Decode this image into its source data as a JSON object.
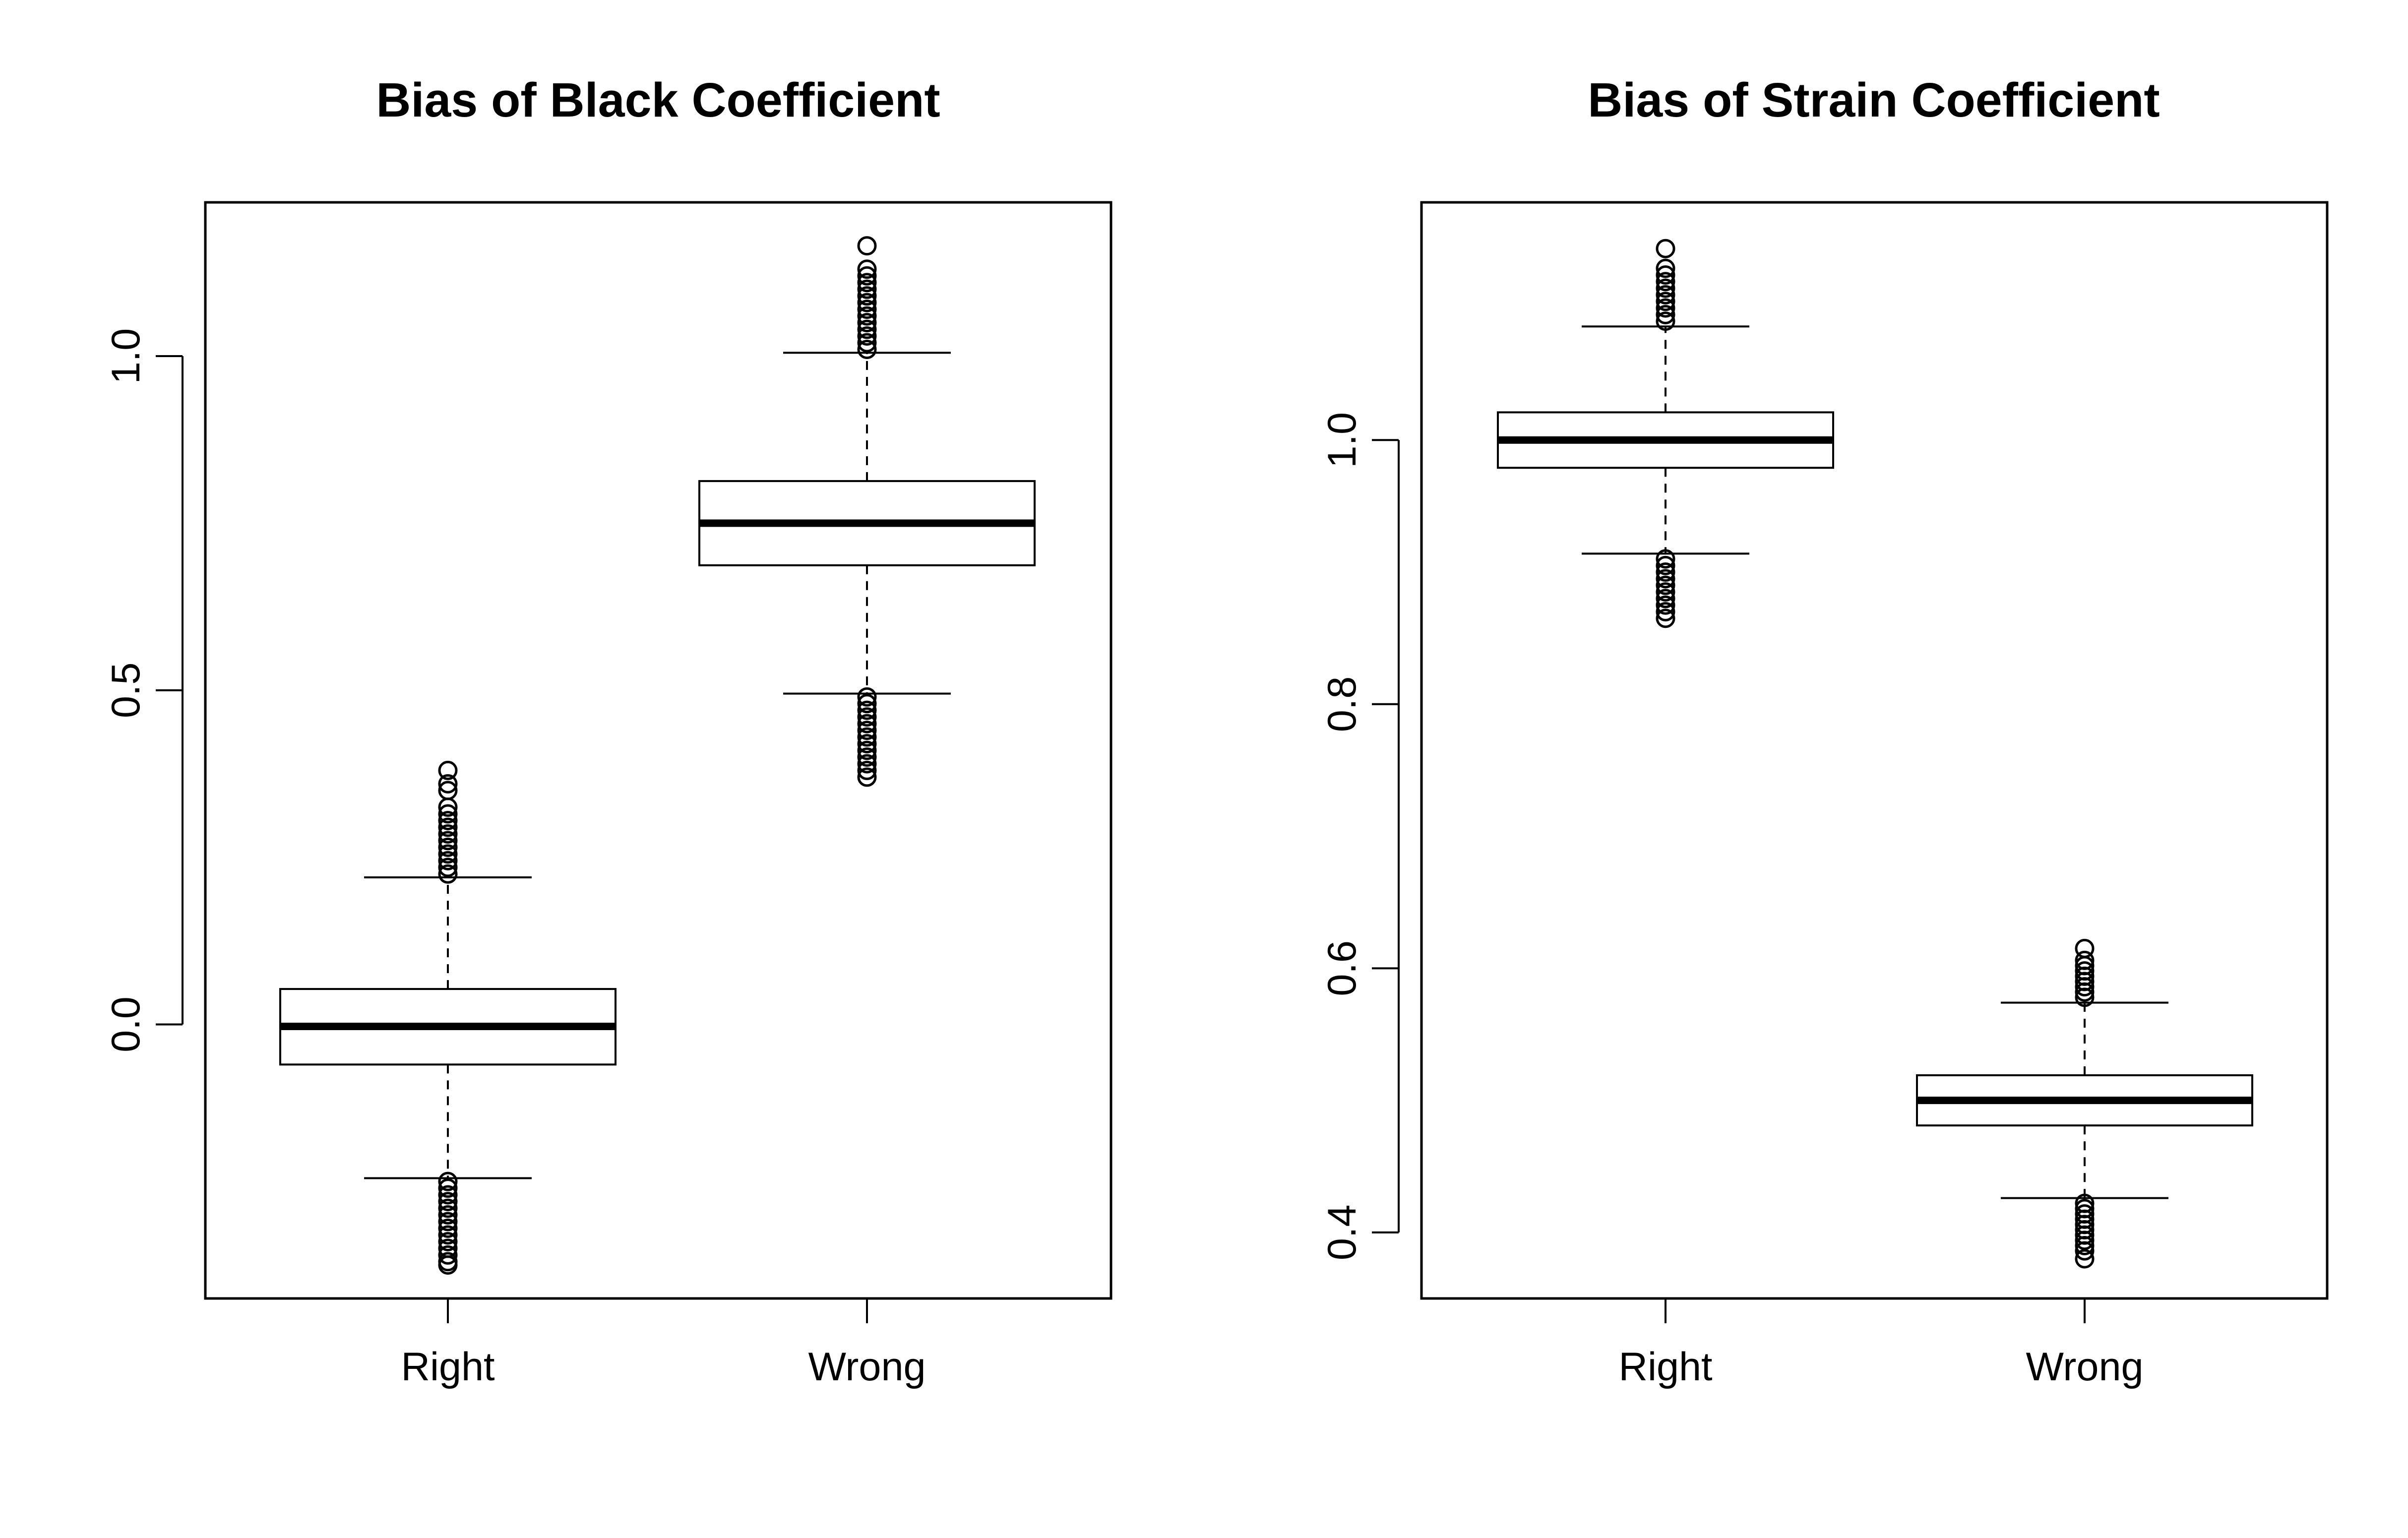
{
  "chart_data": [
    {
      "type": "box",
      "title": "Bias of Black Coefficient",
      "xlabel": "",
      "ylabel": "",
      "categories": [
        "Right",
        "Wrong"
      ],
      "yticks": [
        0.0,
        0.5,
        1.0
      ],
      "ytick_labels": [
        "0.0",
        "0.5",
        "1.0"
      ],
      "ylim": [
        -0.41,
        1.23
      ],
      "grid": false,
      "boxes": [
        {
          "label": "Right",
          "whisker_low": -0.23,
          "q1": -0.06,
          "median": -0.003,
          "q3": 0.053,
          "whisker_high": 0.22,
          "outliers_low": [
            -0.235,
            -0.245,
            -0.255,
            -0.265,
            -0.275,
            -0.285,
            -0.295,
            -0.305,
            -0.315,
            -0.325,
            -0.335,
            -0.345,
            -0.355,
            -0.36
          ],
          "outliers_high": [
            0.225,
            0.235,
            0.245,
            0.255,
            0.265,
            0.275,
            0.285,
            0.295,
            0.305,
            0.315,
            0.325,
            0.35,
            0.36,
            0.38
          ]
        },
        {
          "label": "Wrong",
          "whisker_low": 0.495,
          "q1": 0.687,
          "median": 0.75,
          "q3": 0.813,
          "whisker_high": 1.005,
          "outliers_low": [
            0.49,
            0.48,
            0.47,
            0.46,
            0.45,
            0.44,
            0.43,
            0.42,
            0.41,
            0.4,
            0.39,
            0.38,
            0.37
          ],
          "outliers_high": [
            1.01,
            1.02,
            1.03,
            1.04,
            1.05,
            1.06,
            1.07,
            1.08,
            1.09,
            1.1,
            1.11,
            1.12,
            1.13,
            1.165
          ]
        }
      ]
    },
    {
      "type": "box",
      "title": "Bias of Strain Coefficient",
      "xlabel": "",
      "ylabel": "",
      "categories": [
        "Right",
        "Wrong"
      ],
      "yticks": [
        0.4,
        0.6,
        0.8,
        1.0
      ],
      "ytick_labels": [
        "0.4",
        "0.6",
        "0.8",
        "1.0"
      ],
      "ylim": [
        0.35,
        1.18
      ],
      "grid": false,
      "boxes": [
        {
          "label": "Right",
          "whisker_low": 0.914,
          "q1": 0.979,
          "median": 1.0,
          "q3": 1.021,
          "whisker_high": 1.086,
          "outliers_low": [
            0.91,
            0.905,
            0.9,
            0.895,
            0.89,
            0.885,
            0.88,
            0.875,
            0.87,
            0.865
          ],
          "outliers_high": [
            1.09,
            1.095,
            1.1,
            1.105,
            1.11,
            1.115,
            1.12,
            1.125,
            1.13,
            1.145
          ]
        },
        {
          "label": "Wrong",
          "whisker_low": 0.426,
          "q1": 0.481,
          "median": 0.5,
          "q3": 0.519,
          "whisker_high": 0.574,
          "outliers_low": [
            0.422,
            0.418,
            0.414,
            0.41,
            0.406,
            0.402,
            0.398,
            0.394,
            0.39,
            0.386,
            0.38
          ],
          "outliers_high": [
            0.578,
            0.582,
            0.586,
            0.59,
            0.594,
            0.598,
            0.602,
            0.606,
            0.615
          ]
        }
      ]
    }
  ]
}
